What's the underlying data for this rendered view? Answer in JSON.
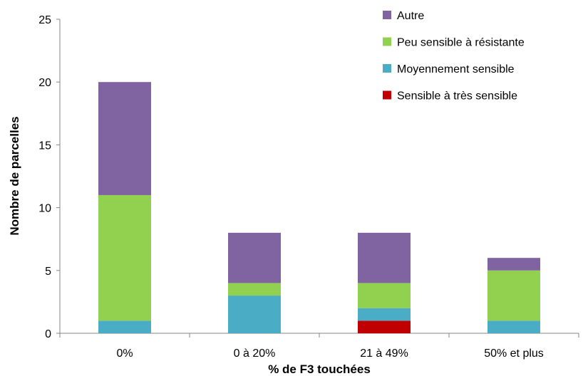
{
  "chart_data": {
    "type": "bar",
    "stacked": true,
    "categories": [
      "0%",
      "0 à 20%",
      "21 à 49%",
      "50% et plus"
    ],
    "series": [
      {
        "name": "Sensible à très sensible",
        "color": "#C00000",
        "values": [
          0,
          0,
          1,
          0
        ]
      },
      {
        "name": "Moyennement sensible",
        "color": "#4BACC6",
        "values": [
          1,
          3,
          1,
          1
        ]
      },
      {
        "name": "Peu sensible à résistante",
        "color": "#92D050",
        "values": [
          10,
          1,
          2,
          4
        ]
      },
      {
        "name": "Autre",
        "color": "#8064A2",
        "values": [
          9,
          4,
          4,
          1
        ]
      }
    ],
    "legend_order": [
      "Autre",
      "Peu sensible à résistante",
      "Moyennement sensible",
      "Sensible à très sensible"
    ],
    "xlabel": "% de F3 touchées",
    "ylabel": "Nombre de parcelles",
    "ylim": [
      0,
      25
    ],
    "yticks": [
      0,
      5,
      10,
      15,
      20,
      25
    ],
    "grid": false,
    "legend_position": "top-right"
  }
}
